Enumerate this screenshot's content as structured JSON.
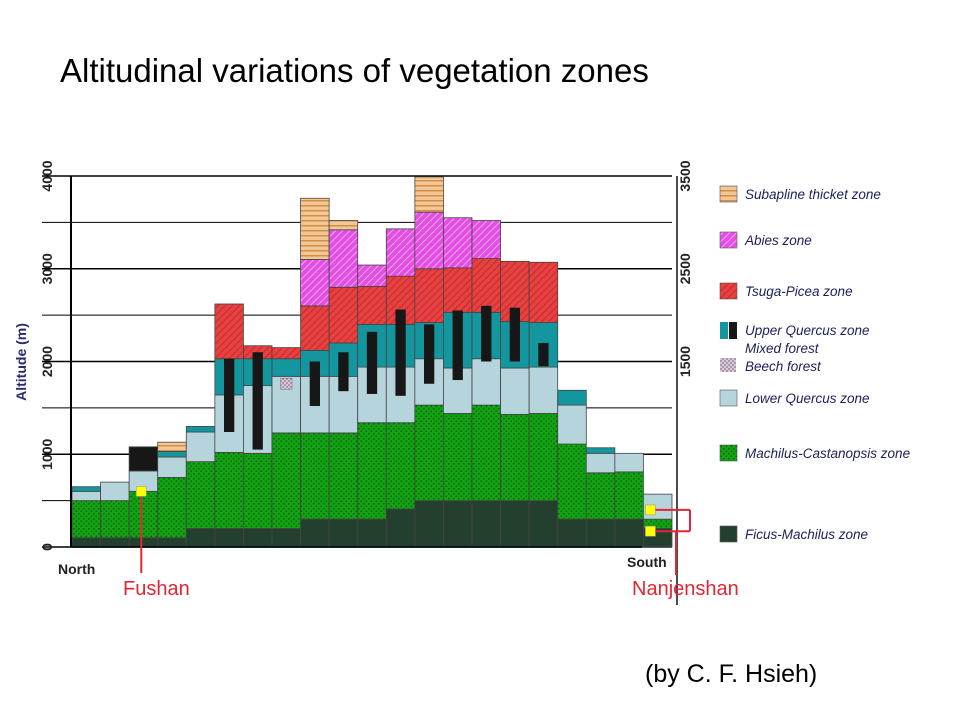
{
  "title": "Altitudinal variations of vegetation zones",
  "credit": "(by C. F. Hsieh)",
  "chart_data": {
    "type": "bar",
    "stacked": true,
    "ylabel": "Altitude (m)",
    "ylim": [
      0,
      4000
    ],
    "yticks": [
      "0",
      "1000",
      "2000",
      "3000",
      "4000"
    ],
    "right_ticks": [
      "1500",
      "2500",
      "3500"
    ],
    "x_left_label": "North",
    "x_right_label": "South",
    "grid": "horizontal",
    "legend_position": "right",
    "colors": {
      "ficus": "#23402f",
      "machilus": "#11a311",
      "lowerq": "#b6d4dc",
      "beech": "#c3aec3",
      "mixed": "#171717",
      "upperq": "#14969e",
      "tsuga": "#e64040",
      "abies": "#e24fe2",
      "subalpine": "#f2c795",
      "marker": "#ffff00",
      "site": "#e32636"
    },
    "legend": [
      {
        "key": "subalpine",
        "label": "Subapline thicket zone"
      },
      {
        "key": "abies",
        "label": "Abies zone"
      },
      {
        "key": "tsuga",
        "label": "Tsuga-Picea zone"
      },
      {
        "key": "upperq",
        "label": "Upper Quercus zone"
      },
      {
        "key": "mixed",
        "label": "Mixed forest"
      },
      {
        "key": "beech",
        "label": "Beech forest"
      },
      {
        "key": "lowerq",
        "label": "Lower Quercus zone"
      },
      {
        "key": "machilus",
        "label": "Machilus-Castanopsis zone"
      },
      {
        "key": "ficus",
        "label": "Ficus-Machilus zone"
      }
    ],
    "columns": [
      {
        "ficus": 100,
        "machilus": 500,
        "lowerq": 600,
        "upperq": 650
      },
      {
        "ficus": 100,
        "machilus": 500,
        "lowerq": 700
      },
      {
        "ficus": 100,
        "machilus": 600,
        "lowerq": 820,
        "mixed": 1080
      },
      {
        "ficus": 100,
        "machilus": 750,
        "lowerq": 970,
        "upperq": 1030,
        "subalpine": 1130
      },
      {
        "ficus": 200,
        "machilus": 920,
        "lowerq": 1240,
        "upperq": 1300
      },
      {
        "ficus": 200,
        "machilus": 1020,
        "lowerq": 1640,
        "upperq": 2030,
        "tsuga": 2620,
        "mixed_bar": [
          1240,
          2030
        ]
      },
      {
        "ficus": 200,
        "machilus": 1010,
        "lowerq": 1740,
        "upperq": 2030,
        "tsuga": 2170,
        "mixed_bar": [
          1050,
          2100
        ]
      },
      {
        "ficus": 200,
        "machilus": 1230,
        "lowerq": 1840,
        "upperq": 2030,
        "tsuga": 2150,
        "beech_bar": [
          1700,
          1820
        ]
      },
      {
        "ficus": 300,
        "machilus": 1230,
        "lowerq": 1840,
        "upperq": 2120,
        "tsuga": 2600,
        "abies": 3100,
        "subalpine": 3760,
        "mixed_bar": [
          1520,
          2000
        ]
      },
      {
        "ficus": 300,
        "machilus": 1230,
        "lowerq": 1840,
        "upperq": 2200,
        "tsuga": 2800,
        "abies": 3420,
        "subalpine": 3520,
        "mixed_bar": [
          1680,
          2100
        ]
      },
      {
        "ficus": 300,
        "machilus": 1340,
        "lowerq": 1940,
        "upperq": 2400,
        "tsuga": 2810,
        "abies": 3040,
        "mixed_bar": [
          1650,
          2320
        ]
      },
      {
        "ficus": 410,
        "machilus": 1340,
        "lowerq": 1940,
        "upperq": 2400,
        "tsuga": 2920,
        "abies": 3430,
        "mixed_bar": [
          1630,
          2560
        ]
      },
      {
        "ficus": 500,
        "machilus": 1530,
        "lowerq": 2030,
        "upperq": 2420,
        "tsuga": 3000,
        "abies": 3610,
        "subalpine": 3990,
        "mixed_bar": [
          1760,
          2400
        ]
      },
      {
        "ficus": 500,
        "machilus": 1440,
        "lowerq": 1930,
        "upperq": 2530,
        "tsuga": 3010,
        "abies": 3550,
        "mixed_bar": [
          1800,
          2550
        ]
      },
      {
        "ficus": 500,
        "machilus": 1530,
        "lowerq": 2030,
        "upperq": 2530,
        "tsuga": 3110,
        "abies": 3520,
        "mixed_bar": [
          2000,
          2600
        ]
      },
      {
        "ficus": 500,
        "machilus": 1430,
        "lowerq": 1930,
        "upperq": 2430,
        "tsuga": 3080,
        "mixed_bar": [
          2000,
          2580
        ]
      },
      {
        "ficus": 500,
        "machilus": 1440,
        "lowerq": 1940,
        "upperq": 2420,
        "tsuga": 3070,
        "mixed_bar": [
          1950,
          2200
        ]
      },
      {
        "ficus": 300,
        "machilus": 1110,
        "lowerq": 1530,
        "upperq": 1690
      },
      {
        "ficus": 300,
        "machilus": 800,
        "lowerq": 1010,
        "upperq": 1070
      },
      {
        "ficus": 300,
        "machilus": 810,
        "lowerq": 1010
      },
      {
        "ficus": 200,
        "machilus": 300,
        "lowerq": 570
      }
    ],
    "sites": [
      {
        "label": "Fushan",
        "column": 2,
        "altitude": 600
      },
      {
        "label": "Nanjenshan",
        "column": 20,
        "altitude": [
          400,
          170
        ]
      }
    ]
  }
}
